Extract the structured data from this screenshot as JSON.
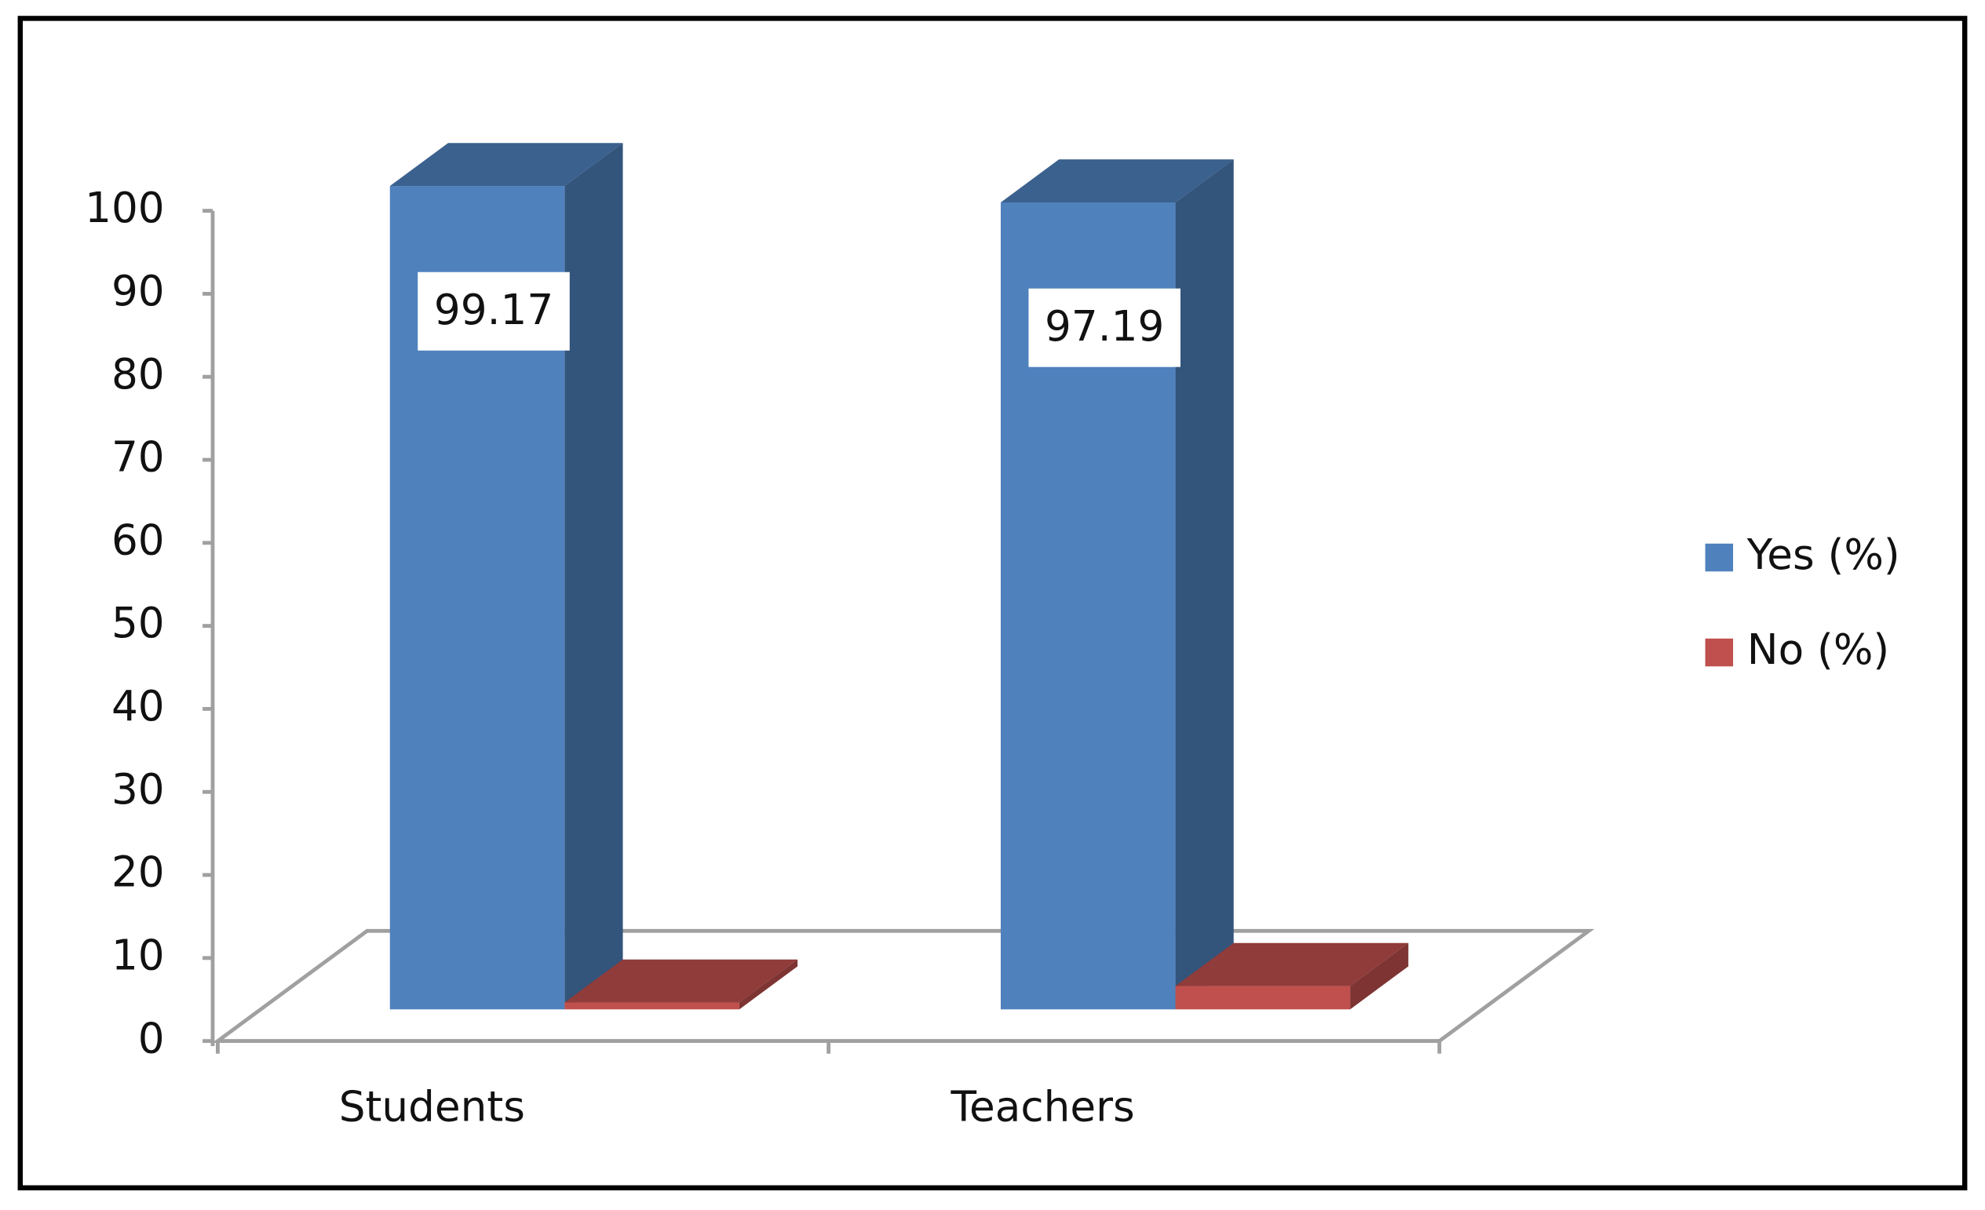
{
  "chart_data": {
    "type": "bar3d",
    "categories": [
      "Students",
      "Teachers"
    ],
    "series": [
      {
        "name": "Yes (%)",
        "color": "#4f81bd",
        "values": [
          99.17,
          97.19
        ],
        "show_labels": true
      },
      {
        "name": "No (%)",
        "color": "#c0504d",
        "values": [
          0.83,
          2.81
        ],
        "show_labels": false
      }
    ],
    "ylim": [
      0,
      100
    ],
    "yticks": [
      0,
      10,
      20,
      30,
      40,
      50,
      60,
      70,
      80,
      90,
      100
    ],
    "grid": false,
    "legend": "right"
  }
}
